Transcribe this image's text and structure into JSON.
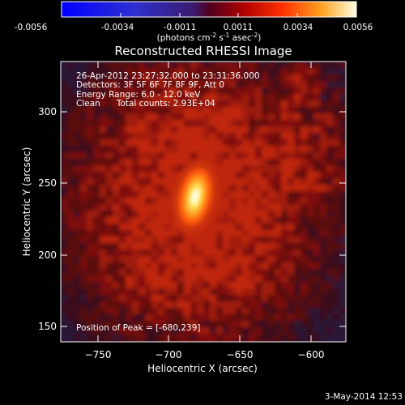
{
  "colorbar": {
    "ticks": [
      "-0.0056",
      "-0.0034",
      "-0.0011",
      "0.0011",
      "0.0034",
      "0.0056"
    ],
    "units_main": "(photons cm",
    "units_sup1": "-2",
    "units_mid": " s",
    "units_sup2": "-1",
    "units_end": " asec",
    "units_sup3": "-2",
    "units_close": ")"
  },
  "title": "Reconstructed RHESSI Image",
  "info": {
    "line1": "26-Apr-2012 23:27:32.000 to 23:31:36.000",
    "line2": "Detectors: 3F 5F 6F 7F 8F 9F, Att 0",
    "line3": "Energy Range: 6.0 - 12.0 keV",
    "line4": "Clean      Total counts: 2.93E+04"
  },
  "peak_label": "Position of Peak = [-680,239]",
  "axes": {
    "xlabel": "Heliocentric X (arcsec)",
    "ylabel": "Heliocentric Y (arcsec)",
    "xticks": [
      "−750",
      "−700",
      "−650",
      "−600"
    ],
    "yticks": [
      "150",
      "200",
      "250",
      "300"
    ]
  },
  "footer_date": "3-May-2014 12:53",
  "colors": {
    "background": "#000000",
    "cmap_low": "#0000ff",
    "cmap_mid": "#3a1a6a",
    "cmap_high_red": "#ff2200",
    "cmap_top": "#ffffe0"
  }
}
